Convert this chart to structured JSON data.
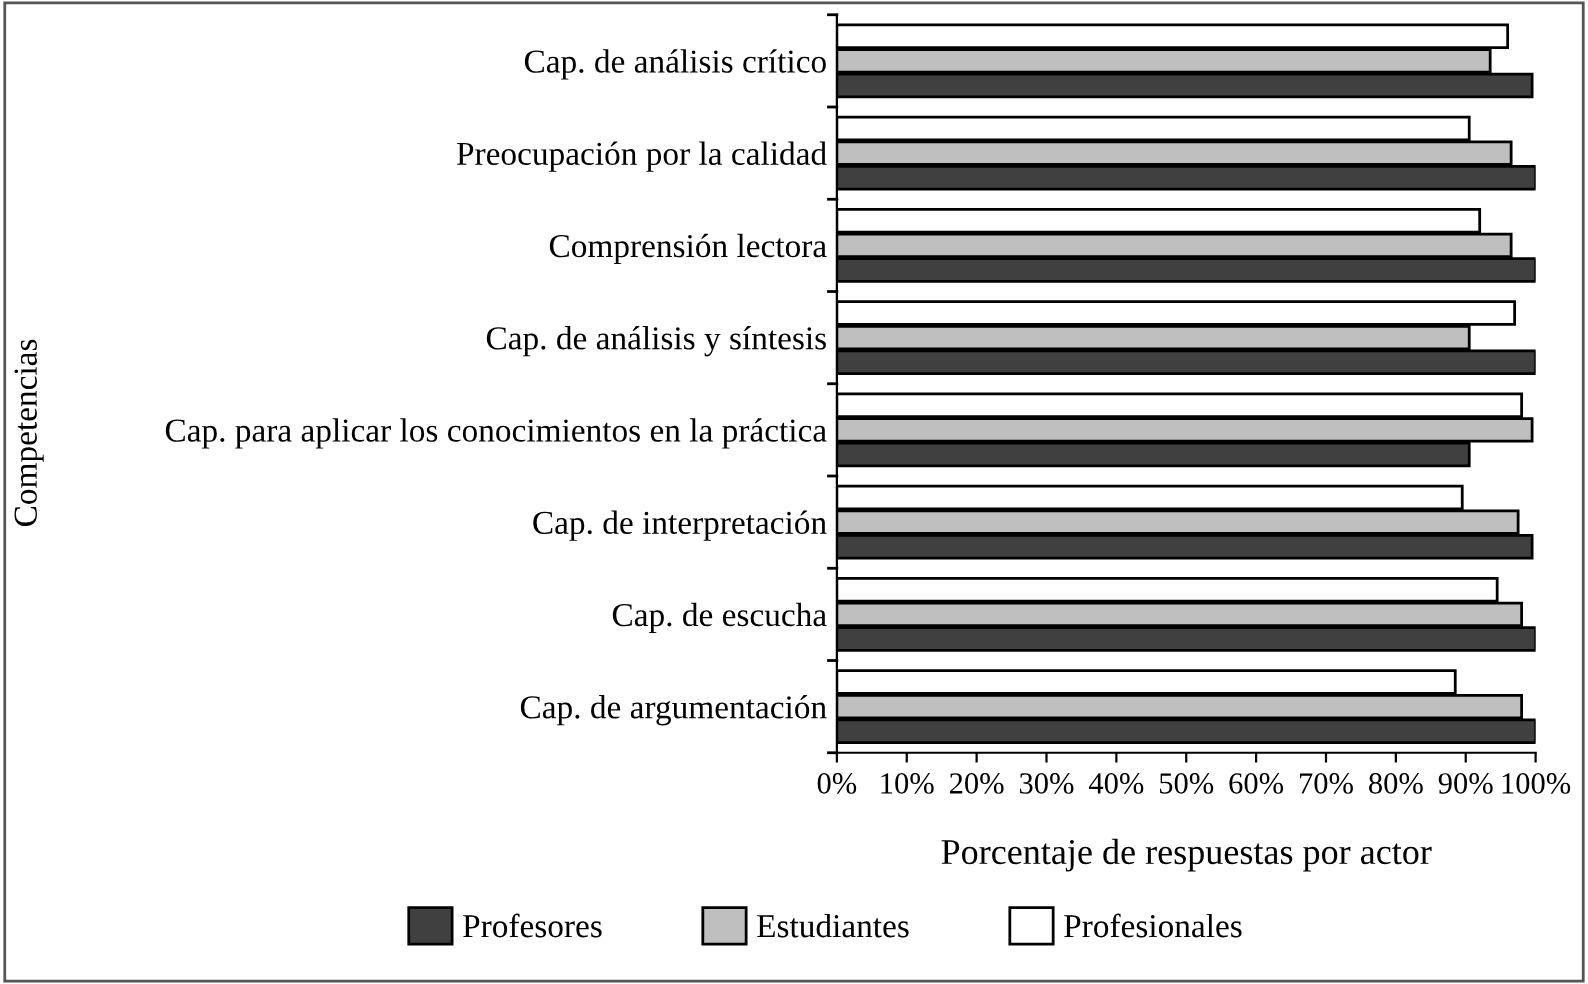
{
  "chart_data": {
    "type": "bar",
    "orientation": "horizontal",
    "xlabel": "Porcentaje de respuestas por actor",
    "ylabel": "Competencias",
    "categories": [
      "Cap. de análisis crítico",
      "Preocupación por la calidad",
      "Comprensión lectora",
      "Cap. de análisis y síntesis",
      "Cap. para aplicar los conocimientos en la práctica",
      "Cap. de interpretación",
      "Cap. de escucha",
      "Cap. de argumentación"
    ],
    "series": [
      {
        "name": "Profesores",
        "color": "#404040",
        "values": [
          99.5,
          100,
          100,
          100,
          90.5,
          99.5,
          100,
          100
        ]
      },
      {
        "name": "Estudiantes",
        "color": "#bfbfbf",
        "values": [
          93.5,
          96.5,
          96.5,
          90.5,
          99.5,
          97.5,
          98,
          98
        ]
      },
      {
        "name": "Profesionales",
        "color": "#ffffff",
        "values": [
          96,
          90.5,
          92,
          97,
          98,
          89.5,
          94.5,
          88.5
        ]
      }
    ],
    "xlim": [
      0,
      100
    ],
    "xticks": [
      {
        "value": 0,
        "label": "0%"
      },
      {
        "value": 10,
        "label": "10%"
      },
      {
        "value": 20,
        "label": "20%"
      },
      {
        "value": 30,
        "label": "30%"
      },
      {
        "value": 40,
        "label": "40%"
      },
      {
        "value": 50,
        "label": "50%"
      },
      {
        "value": 60,
        "label": "60%"
      },
      {
        "value": 70,
        "label": "70%"
      },
      {
        "value": 80,
        "label": "80%"
      },
      {
        "value": 90,
        "label": "90%"
      },
      {
        "value": 100,
        "label": "100%"
      }
    ],
    "grid": false,
    "legend": "bottom"
  }
}
